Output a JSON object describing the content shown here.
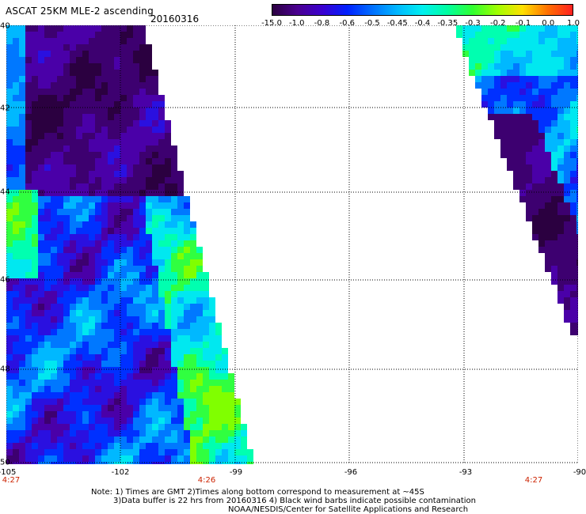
{
  "header": {
    "title": "ASCAT 25KM MLE-2 ascending",
    "date": "20160316"
  },
  "colorbar": {
    "labels": [
      "-15.0",
      "-1.0",
      "-0.8",
      "-0.6",
      "-0.5",
      "-0.45",
      "-0.4",
      "-0.35",
      "-0.3",
      "-0.2",
      "-0.1",
      "0.0",
      "1.0"
    ],
    "colors": [
      "#2b0040",
      "#4a0090",
      "#3a00d0",
      "#0020ff",
      "#0070ff",
      "#00b8ff",
      "#00f0f0",
      "#00ffa0",
      "#30ff30",
      "#a0ff00",
      "#ffe000",
      "#ff7000",
      "#ff2020"
    ]
  },
  "map": {
    "lat_labels": [
      "40",
      "42",
      "44",
      "46",
      "48",
      "50"
    ],
    "lon_labels": [
      "-105",
      "-102",
      "-99",
      "-96",
      "-93",
      "-90"
    ],
    "time_labels": [
      "4:27",
      "4:26",
      "4:27"
    ],
    "lat_range": [
      40,
      50
    ],
    "lon_range": [
      -105,
      -90
    ]
  },
  "notes": {
    "line1": "Note: 1) Times are GMT 2)Times along bottom correspond to measurement at ~45S",
    "line2": "3)Data buffer is 22 hrs from 20160316 4) Black wind barbs indicate possible contamination",
    "line3": "NOAA/NESDIS/Center for Satellite Applications and Research"
  }
}
